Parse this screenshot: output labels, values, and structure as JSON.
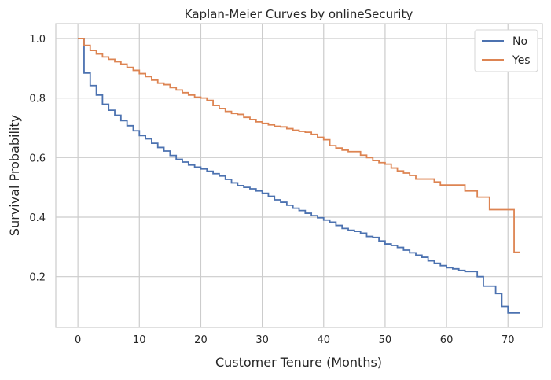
{
  "chart_data": {
    "type": "line",
    "step": "post",
    "title": "Kaplan-Meier Curves by onlineSecurity",
    "xlabel": "Customer Tenure (Months)",
    "ylabel": "Survival Probability",
    "xlim": [
      -3.6,
      75.6
    ],
    "ylim": [
      0.03,
      1.05
    ],
    "xticks": [
      "0",
      "10",
      "20",
      "30",
      "40",
      "50",
      "60",
      "70"
    ],
    "yticks": [
      "0.2",
      "0.4",
      "0.6",
      "0.8",
      "1.0"
    ],
    "grid": true,
    "legend_position": "top-right",
    "series": [
      {
        "name": "No",
        "color": "#4c72b0",
        "x": [
          0,
          1,
          2,
          3,
          4,
          5,
          6,
          7,
          8,
          9,
          10,
          11,
          12,
          13,
          14,
          15,
          16,
          17,
          18,
          19,
          20,
          21,
          22,
          23,
          24,
          25,
          26,
          27,
          28,
          29,
          30,
          31,
          32,
          33,
          34,
          35,
          36,
          37,
          38,
          39,
          40,
          41,
          42,
          43,
          44,
          45,
          46,
          47,
          48,
          49,
          50,
          51,
          52,
          53,
          54,
          55,
          56,
          57,
          58,
          59,
          60,
          61,
          62,
          63,
          65,
          66,
          68,
          69,
          70,
          72
        ],
        "y": [
          1.0,
          0.884,
          0.842,
          0.81,
          0.779,
          0.759,
          0.742,
          0.724,
          0.707,
          0.69,
          0.674,
          0.663,
          0.648,
          0.634,
          0.622,
          0.607,
          0.594,
          0.585,
          0.575,
          0.568,
          0.562,
          0.554,
          0.546,
          0.538,
          0.527,
          0.515,
          0.506,
          0.5,
          0.495,
          0.488,
          0.48,
          0.47,
          0.458,
          0.45,
          0.44,
          0.43,
          0.422,
          0.413,
          0.405,
          0.398,
          0.39,
          0.383,
          0.372,
          0.362,
          0.356,
          0.352,
          0.346,
          0.335,
          0.332,
          0.32,
          0.31,
          0.305,
          0.298,
          0.289,
          0.28,
          0.272,
          0.265,
          0.253,
          0.245,
          0.237,
          0.23,
          0.226,
          0.221,
          0.217,
          0.2,
          0.168,
          0.143,
          0.1,
          0.078,
          0.078
        ]
      },
      {
        "name": "Yes",
        "color": "#dd8452",
        "x": [
          0,
          1,
          2,
          3,
          4,
          5,
          6,
          7,
          8,
          9,
          10,
          11,
          12,
          13,
          14,
          15,
          16,
          17,
          18,
          19,
          20,
          21,
          22,
          23,
          24,
          25,
          26,
          27,
          28,
          29,
          30,
          31,
          32,
          33,
          34,
          35,
          36,
          37,
          38,
          39,
          40,
          41,
          42,
          43,
          44,
          46,
          47,
          48,
          49,
          50,
          51,
          52,
          53,
          54,
          55,
          58,
          59,
          63,
          65,
          67,
          71,
          72
        ],
        "y": [
          1.0,
          0.977,
          0.96,
          0.948,
          0.938,
          0.93,
          0.922,
          0.914,
          0.903,
          0.893,
          0.882,
          0.872,
          0.86,
          0.85,
          0.845,
          0.835,
          0.827,
          0.818,
          0.81,
          0.803,
          0.8,
          0.792,
          0.775,
          0.765,
          0.755,
          0.748,
          0.745,
          0.735,
          0.728,
          0.72,
          0.715,
          0.71,
          0.705,
          0.703,
          0.697,
          0.692,
          0.688,
          0.685,
          0.678,
          0.668,
          0.66,
          0.64,
          0.632,
          0.625,
          0.62,
          0.608,
          0.6,
          0.59,
          0.583,
          0.578,
          0.565,
          0.555,
          0.548,
          0.54,
          0.528,
          0.518,
          0.508,
          0.488,
          0.467,
          0.425,
          0.282,
          0.282
        ]
      }
    ]
  }
}
